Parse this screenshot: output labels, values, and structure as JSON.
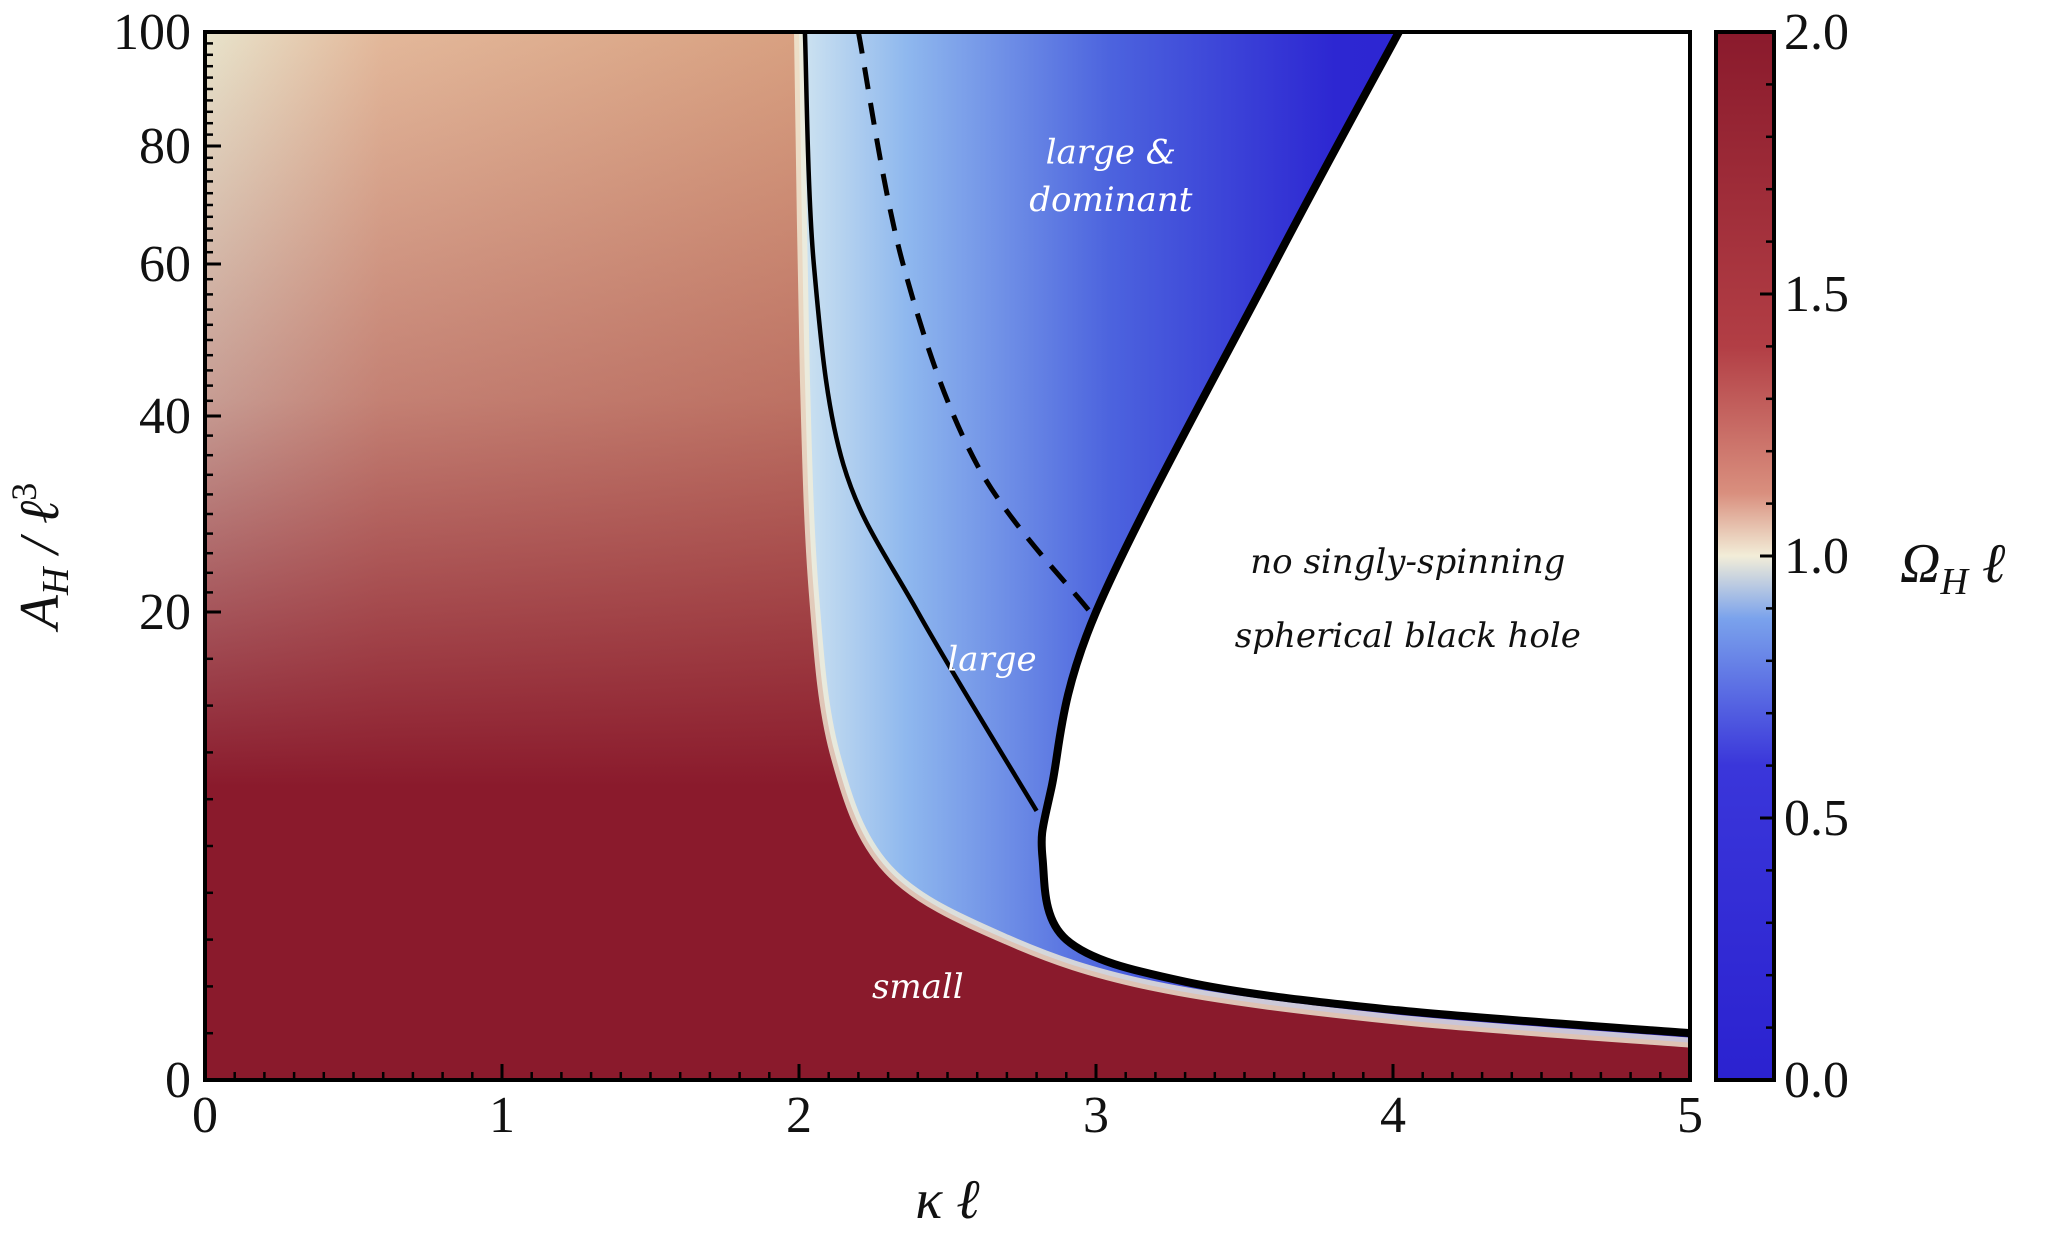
{
  "chart_data": {
    "type": "heatmap",
    "title": "",
    "xlabel": "κ ℓ",
    "ylabel": "A_H / ℓ³",
    "ylabel_main": "A",
    "ylabel_sub": "H",
    "ylabel_rest": " / ℓ",
    "ylabel_sup": "3",
    "colorbar_label_main": "Ω",
    "colorbar_label_sub": "H",
    "colorbar_label_rest": " ℓ",
    "xlim": [
      0,
      5
    ],
    "ylim": [
      0,
      100
    ],
    "y_scale": "nonlinear (compressed above 20)",
    "y_ticks": [
      {
        "value": 0,
        "label": "0"
      },
      {
        "value": 20,
        "label": "20"
      },
      {
        "value": 40,
        "label": "40"
      },
      {
        "value": 60,
        "label": "60"
      },
      {
        "value": 80,
        "label": "80"
      },
      {
        "value": 100,
        "label": "100"
      }
    ],
    "x_ticks": [
      {
        "value": 0,
        "label": "0"
      },
      {
        "value": 1,
        "label": "1"
      },
      {
        "value": 2,
        "label": "2"
      },
      {
        "value": 3,
        "label": "3"
      },
      {
        "value": 4,
        "label": "4"
      },
      {
        "value": 5,
        "label": "5"
      }
    ],
    "colorbar": {
      "range": [
        0.0,
        2.0
      ],
      "ticks": [
        {
          "value": 0.0,
          "label": "0.0"
        },
        {
          "value": 0.5,
          "label": "0.5"
        },
        {
          "value": 1.0,
          "label": "1.0"
        },
        {
          "value": 1.5,
          "label": "1.5"
        },
        {
          "value": 2.0,
          "label": "2.0"
        }
      ],
      "colors": {
        "low": "#2b22d0",
        "mid": "#f2edd8",
        "high": "#8a1a2c"
      }
    },
    "boundary_curves": [
      {
        "style": "solid-thick",
        "points": [
          [
            4.02,
            100
          ],
          [
            3.6,
            60
          ],
          [
            3.0,
            20
          ],
          [
            2.85,
            12.5
          ],
          [
            2.82,
            9.5
          ],
          [
            2.9,
            6.0
          ],
          [
            3.3,
            4.2
          ],
          [
            4.0,
            3.0
          ],
          [
            5.0,
            2.0
          ]
        ]
      },
      {
        "style": "solid",
        "points": [
          [
            2.02,
            100
          ],
          [
            2.05,
            60
          ],
          [
            2.15,
            35
          ],
          [
            2.4,
            20
          ],
          [
            2.8,
            11.5
          ]
        ]
      },
      {
        "style": "dashed",
        "points": [
          [
            2.2,
            100
          ],
          [
            2.35,
            60
          ],
          [
            2.6,
            35
          ],
          [
            2.98,
            20
          ]
        ]
      }
    ],
    "annotations": [
      {
        "text": "large &",
        "x": 3.05,
        "y": 77,
        "color": "#ffffff"
      },
      {
        "text": "dominant",
        "x": 3.05,
        "y": 69,
        "color": "#ffffff"
      },
      {
        "text": "large",
        "x": 2.65,
        "y": 17.5,
        "color": "#ffffff"
      },
      {
        "text": "small",
        "x": 2.4,
        "y": 3.5,
        "color": "#ffffff"
      },
      {
        "text": "no singly-spinning",
        "x": 4.05,
        "y": 24,
        "color": "#111111"
      },
      {
        "text": "spherical black hole",
        "x": 4.05,
        "y": 18.5,
        "color": "#111111"
      }
    ],
    "grid": false,
    "legend": "none"
  }
}
